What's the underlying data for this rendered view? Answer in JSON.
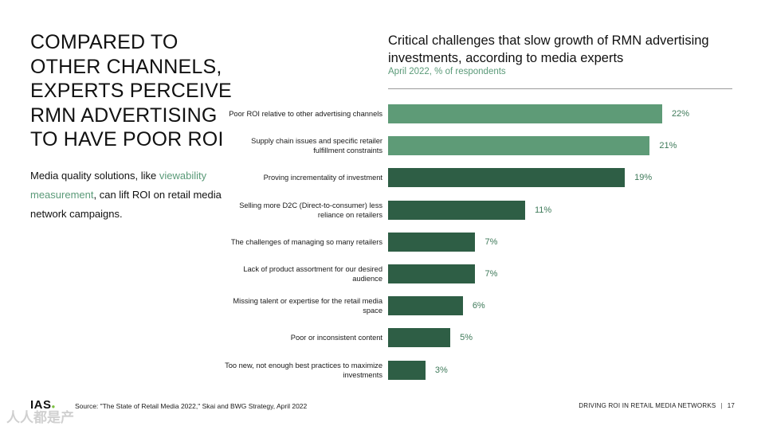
{
  "headline": "COMPARED TO OTHER CHANNELS, EXPERTS PERCEIVE RMN ADVERTISING TO HAVE  POOR ROI",
  "intro": {
    "prefix": "Media quality solutions, like ",
    "link": "viewability measurement",
    "suffix": ", can lift ROI on retail media network campaigns."
  },
  "chart_data": {
    "type": "bar",
    "orientation": "horizontal",
    "title": "Critical challenges that slow growth of RMN advertising investments, according to media experts",
    "subtitle": "April 2022, % of respondents",
    "xlim": [
      0,
      22
    ],
    "categories": [
      "Poor ROI relative to other advertising channels",
      "Supply chain issues and specific retailer fulfillment constraints",
      "Proving incrementality of investment",
      "Selling more D2C (Direct-to-consumer) less reliance on retailers",
      "The challenges of managing so many retailers",
      "Lack of product assortment for our desired audience",
      "Missing talent or expertise for the retail media space",
      "Poor or inconsistent content",
      "Too new, not enough best practices to maximize investments"
    ],
    "values": [
      22,
      21,
      19,
      11,
      7,
      7,
      6,
      5,
      3
    ],
    "value_labels": [
      "22%",
      "21%",
      "19%",
      "11%",
      "7%",
      "7%",
      "6%",
      "5%",
      "3%"
    ],
    "bar_colors": [
      "#5e9b77",
      "#5e9b77",
      "#2e5e45",
      "#2e5e45",
      "#2e5e45",
      "#2e5e45",
      "#2e5e45",
      "#2e5e45",
      "#2e5e45"
    ]
  },
  "footer": {
    "logo": "IAS",
    "source": "Source: \"The State of Retail Media 2022,\" Skai and BWG Strategy, April 2022",
    "section": "DRIVING ROI IN RETAIL MEDIA NETWORKS",
    "page_number": "17"
  },
  "watermark": "人人都是产"
}
